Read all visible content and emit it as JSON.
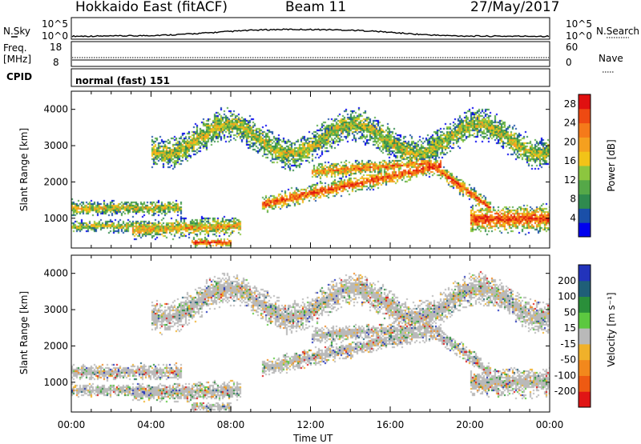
{
  "header": {
    "title": "Hokkaido East (fitACF)",
    "beam": "Beam 11",
    "date": "27/May/2017"
  },
  "noise_panel": {
    "left_label": "N.Sky",
    "right_label": "N.Search",
    "ticks_left": [
      "10^5",
      "10^0"
    ],
    "ticks_right": [
      "10^5",
      "10^0"
    ]
  },
  "freq_panel": {
    "left_label_1": "Freq.",
    "left_label_2": "[MHz]",
    "right_label": "Nave",
    "ticks_left": [
      "18",
      "8"
    ],
    "ticks_right": [
      "60",
      "0"
    ]
  },
  "cpid_panel": {
    "label": "CPID",
    "value": "normal (fast) 151"
  },
  "chart_data": [
    {
      "type": "heatmap",
      "name": "power",
      "ylabel": "Slant Range [km]",
      "ylim": [
        180,
        4500
      ],
      "y_ticks": [
        "1000",
        "2000",
        "3000",
        "4000"
      ],
      "colorbar_label": "Power [dB]",
      "colorbar_ticks": [
        "4",
        "8",
        "12",
        "16",
        "20",
        "24",
        "28"
      ],
      "colorbar_range": [
        0,
        30
      ],
      "colors": [
        "#0000ee",
        "#1a4fa8",
        "#2f8a4e",
        "#55a848",
        "#8cc63f",
        "#f2c318",
        "#f5a01f",
        "#f57a1a",
        "#ee4a12",
        "#e01010"
      ]
    },
    {
      "type": "heatmap",
      "name": "velocity",
      "ylabel": "Slant Range [km]",
      "ylim": [
        180,
        4500
      ],
      "y_ticks": [
        "1000",
        "2000",
        "3000",
        "4000"
      ],
      "xlabel": "Time UT",
      "x_ticks": [
        "00:00",
        "04:00",
        "08:00",
        "12:00",
        "16:00",
        "20:00",
        "00:00"
      ],
      "xlim": [
        0,
        24
      ],
      "colorbar_label": "Velocity [m s⁻¹]",
      "colorbar_ticks": [
        "200",
        "100",
        "50",
        "15",
        "-15",
        "-50",
        "-100",
        "-200"
      ],
      "colors": [
        "#2233bb",
        "#1f5f78",
        "#2a8f3a",
        "#5cc840",
        "#b9b9b9",
        "#f0b12a",
        "#f2881c",
        "#ee5a12",
        "#e01515"
      ]
    }
  ]
}
